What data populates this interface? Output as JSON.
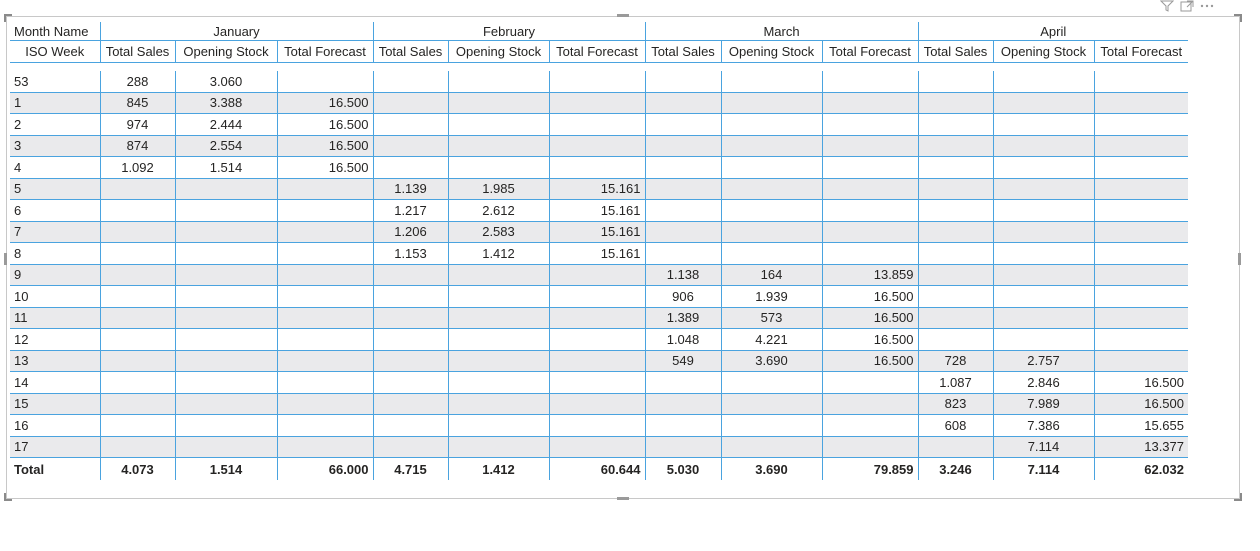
{
  "header": {
    "month_label": "Month Name",
    "week_label": "ISO Week",
    "months": [
      "January",
      "February",
      "March",
      "April"
    ],
    "measures": [
      "Total Sales",
      "Opening Stock",
      "Total Forecast"
    ]
  },
  "rows": [
    {
      "week": "53",
      "cells": [
        "288",
        "3.060",
        "",
        "",
        "",
        "",
        "",
        "",
        "",
        "",
        "",
        ""
      ]
    },
    {
      "week": "1",
      "cells": [
        "845",
        "3.388",
        "16.500",
        "",
        "",
        "",
        "",
        "",
        "",
        "",
        "",
        ""
      ]
    },
    {
      "week": "2",
      "cells": [
        "974",
        "2.444",
        "16.500",
        "",
        "",
        "",
        "",
        "",
        "",
        "",
        "",
        ""
      ]
    },
    {
      "week": "3",
      "cells": [
        "874",
        "2.554",
        "16.500",
        "",
        "",
        "",
        "",
        "",
        "",
        "",
        "",
        ""
      ]
    },
    {
      "week": "4",
      "cells": [
        "1.092",
        "1.514",
        "16.500",
        "",
        "",
        "",
        "",
        "",
        "",
        "",
        "",
        ""
      ]
    },
    {
      "week": "5",
      "cells": [
        "",
        "",
        "",
        "1.139",
        "1.985",
        "15.161",
        "",
        "",
        "",
        "",
        "",
        ""
      ]
    },
    {
      "week": "6",
      "cells": [
        "",
        "",
        "",
        "1.217",
        "2.612",
        "15.161",
        "",
        "",
        "",
        "",
        "",
        ""
      ]
    },
    {
      "week": "7",
      "cells": [
        "",
        "",
        "",
        "1.206",
        "2.583",
        "15.161",
        "",
        "",
        "",
        "",
        "",
        ""
      ]
    },
    {
      "week": "8",
      "cells": [
        "",
        "",
        "",
        "1.153",
        "1.412",
        "15.161",
        "",
        "",
        "",
        "",
        "",
        ""
      ]
    },
    {
      "week": "9",
      "cells": [
        "",
        "",
        "",
        "",
        "",
        "",
        "1.138",
        "164",
        "13.859",
        "",
        "",
        ""
      ]
    },
    {
      "week": "10",
      "cells": [
        "",
        "",
        "",
        "",
        "",
        "",
        "906",
        "1.939",
        "16.500",
        "",
        "",
        ""
      ]
    },
    {
      "week": "11",
      "cells": [
        "",
        "",
        "",
        "",
        "",
        "",
        "1.389",
        "573",
        "16.500",
        "",
        "",
        ""
      ]
    },
    {
      "week": "12",
      "cells": [
        "",
        "",
        "",
        "",
        "",
        "",
        "1.048",
        "4.221",
        "16.500",
        "",
        "",
        ""
      ]
    },
    {
      "week": "13",
      "cells": [
        "",
        "",
        "",
        "",
        "",
        "",
        "549",
        "3.690",
        "16.500",
        "728",
        "2.757",
        ""
      ]
    },
    {
      "week": "14",
      "cells": [
        "",
        "",
        "",
        "",
        "",
        "",
        "",
        "",
        "",
        "1.087",
        "2.846",
        "16.500"
      ]
    },
    {
      "week": "15",
      "cells": [
        "",
        "",
        "",
        "",
        "",
        "",
        "",
        "",
        "",
        "823",
        "7.989",
        "16.500"
      ]
    },
    {
      "week": "16",
      "cells": [
        "",
        "",
        "",
        "",
        "",
        "",
        "",
        "",
        "",
        "608",
        "7.386",
        "15.655"
      ]
    },
    {
      "week": "17",
      "cells": [
        "",
        "",
        "",
        "",
        "",
        "",
        "",
        "",
        "",
        "",
        "7.114",
        "13.377"
      ]
    }
  ],
  "total": {
    "label": "Total",
    "cells": [
      "4.073",
      "1.514",
      "66.000",
      "4.715",
      "1.412",
      "60.644",
      "5.030",
      "3.690",
      "79.859",
      "3.246",
      "7.114",
      "62.032"
    ]
  },
  "colors": {
    "grid_line": "#4aa3df",
    "alt_row": "#eaeaec",
    "text": "#252423"
  }
}
